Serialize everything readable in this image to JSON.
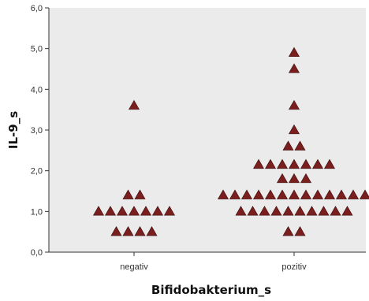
{
  "chart_data": {
    "type": "scatter",
    "title": "",
    "xlabel": "Bifidobakterium_s",
    "ylabel": "IL-9_s",
    "categories": [
      "negativ",
      "pozitiv"
    ],
    "ylim": [
      0,
      6
    ],
    "yticks": [
      "0,0",
      "1,0",
      "2,0",
      "3,0",
      "4,0",
      "5,0",
      "6,0"
    ],
    "grid": false,
    "marker": "triangle",
    "colors": {
      "marker_fill": "#7a1e1e",
      "marker_stroke": "#3a0d0d",
      "plot_background": "#ebebeb",
      "axis": "#333333"
    },
    "points": [
      {
        "category": "negativ",
        "values": [
          0.5,
          0.5,
          0.5,
          0.5,
          1.0,
          1.0,
          1.0,
          1.0,
          1.0,
          1.0,
          1.0,
          1.4,
          1.4,
          3.6
        ]
      },
      {
        "category": "pozitiv",
        "values": [
          0.5,
          0.5,
          1.0,
          1.0,
          1.0,
          1.0,
          1.0,
          1.0,
          1.0,
          1.0,
          1.0,
          1.0,
          1.4,
          1.4,
          1.4,
          1.4,
          1.4,
          1.4,
          1.4,
          1.4,
          1.4,
          1.4,
          1.4,
          1.4,
          1.4,
          1.8,
          1.8,
          1.8,
          2.15,
          2.15,
          2.15,
          2.15,
          2.15,
          2.15,
          2.15,
          2.6,
          2.6,
          3.0,
          3.6,
          4.5,
          4.9
        ]
      }
    ]
  }
}
